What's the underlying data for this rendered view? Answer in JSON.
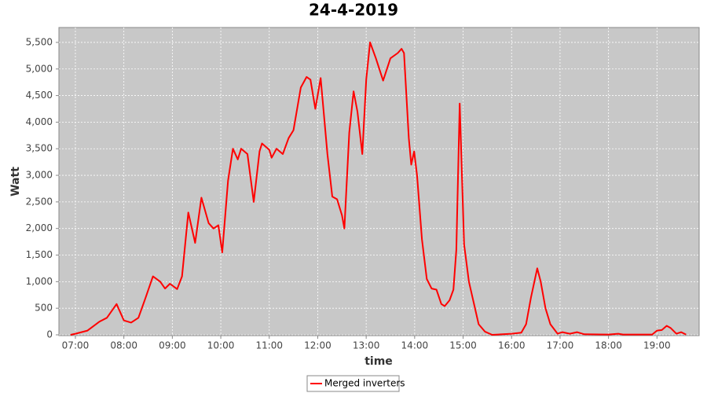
{
  "chart_data": {
    "type": "line",
    "title": "24-4-2019",
    "x_label": "time",
    "y_label": "Watt",
    "x": [
      6.9,
      7.0,
      7.25,
      7.5,
      7.65,
      7.85,
      8.0,
      8.15,
      8.3,
      8.45,
      8.6,
      8.75,
      8.85,
      8.95,
      9.1,
      9.2,
      9.33,
      9.47,
      9.6,
      9.75,
      9.85,
      9.95,
      10.03,
      10.15,
      10.25,
      10.35,
      10.42,
      10.55,
      10.68,
      10.8,
      10.85,
      11.0,
      11.05,
      11.15,
      11.28,
      11.4,
      11.5,
      11.65,
      11.77,
      11.85,
      11.95,
      12.06,
      12.2,
      12.3,
      12.4,
      12.5,
      12.55,
      12.65,
      12.74,
      12.82,
      12.92,
      13.0,
      13.08,
      13.2,
      13.35,
      13.5,
      13.65,
      13.73,
      13.78,
      13.88,
      13.93,
      13.99,
      14.05,
      14.15,
      14.25,
      14.35,
      14.45,
      14.55,
      14.62,
      14.72,
      14.8,
      14.86,
      14.93,
      15.02,
      15.12,
      15.22,
      15.32,
      15.45,
      15.6,
      16.0,
      16.2,
      16.3,
      16.4,
      16.53,
      16.6,
      16.7,
      16.8,
      16.95,
      17.05,
      17.2,
      17.35,
      17.5,
      18.0,
      18.2,
      18.3,
      18.9,
      19.0,
      19.1,
      19.2,
      19.28,
      19.4,
      19.5,
      19.6
    ],
    "series": [
      {
        "name": "Merged inverters",
        "color": "#ff0000",
        "values": [
          0,
          20,
          80,
          250,
          320,
          580,
          270,
          230,
          320,
          700,
          1100,
          1000,
          870,
          960,
          860,
          1100,
          2300,
          1730,
          2580,
          2100,
          2000,
          2060,
          1550,
          2900,
          3500,
          3300,
          3500,
          3400,
          2500,
          3450,
          3600,
          3480,
          3330,
          3500,
          3400,
          3700,
          3850,
          4650,
          4850,
          4800,
          4250,
          4830,
          3400,
          2600,
          2550,
          2250,
          2000,
          3800,
          4580,
          4200,
          3400,
          4800,
          5500,
          5200,
          4780,
          5200,
          5300,
          5380,
          5300,
          3700,
          3200,
          3450,
          3000,
          1800,
          1050,
          870,
          850,
          580,
          540,
          650,
          850,
          1600,
          4350,
          1700,
          1000,
          600,
          200,
          60,
          0,
          20,
          40,
          200,
          700,
          1250,
          1000,
          500,
          200,
          20,
          50,
          20,
          50,
          10,
          5,
          20,
          5,
          5,
          80,
          90,
          170,
          130,
          20,
          50,
          5
        ]
      }
    ],
    "xlim": [
      6.66,
      19.87
    ],
    "ylim": [
      -15,
      5780
    ],
    "xticks": [
      {
        "value": 7,
        "label": "07:00"
      },
      {
        "value": 8,
        "label": "08:00"
      },
      {
        "value": 9,
        "label": "09:00"
      },
      {
        "value": 10,
        "label": "10:00"
      },
      {
        "value": 11,
        "label": "11:00"
      },
      {
        "value": 12,
        "label": "12:00"
      },
      {
        "value": 13,
        "label": "13:00"
      },
      {
        "value": 14,
        "label": "14:00"
      },
      {
        "value": 15,
        "label": "15:00"
      },
      {
        "value": 16,
        "label": "16:00"
      },
      {
        "value": 17,
        "label": "17:00"
      },
      {
        "value": 18,
        "label": "18:00"
      },
      {
        "value": 19,
        "label": "19:00"
      }
    ],
    "yticks": [
      0,
      500,
      {
        "value": 1000,
        "label": "1,000"
      },
      {
        "value": 1500,
        "label": "1,500"
      },
      {
        "value": 2000,
        "label": "2,000"
      },
      {
        "value": 2500,
        "label": "2,500"
      },
      {
        "value": 3000,
        "label": "3,000"
      },
      {
        "value": 3500,
        "label": "3,500"
      },
      {
        "value": 4000,
        "label": "4,000"
      },
      {
        "value": 4500,
        "label": "4,500"
      },
      {
        "value": 5000,
        "label": "5,000"
      },
      {
        "value": 5500,
        "label": "5,500"
      }
    ],
    "grid": true,
    "legend": "bottom"
  }
}
